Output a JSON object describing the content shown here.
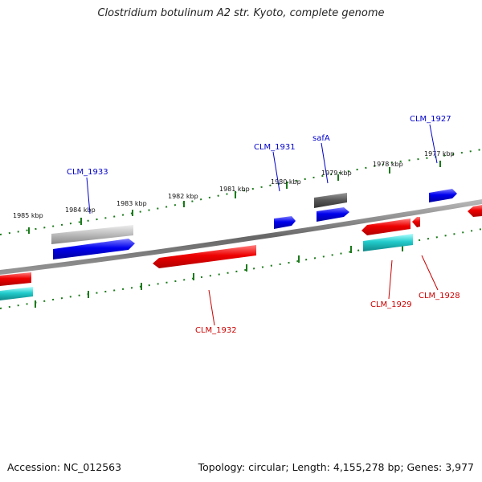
{
  "title": "Clostridium botulinum A2 str. Kyoto, complete genome",
  "footer": {
    "accession": "Accession: NC_012563",
    "summary": "Topology: circular; Length: 4,155,278 bp; Genes: 3,977"
  },
  "scale_labels": [
    "1985 kbp",
    "1984 kbp",
    "1983 kbp",
    "1982 kbp",
    "1981 kbp",
    "1980 kbp",
    "1979 kbp",
    "1978 kbp",
    "1977 kbp"
  ],
  "gene_labels_top": [
    "CLM_1933",
    "CLM_1931",
    "safA",
    "CLM_1927"
  ],
  "gene_labels_bottom": [
    "CLM_1932",
    "CLM_1929",
    "CLM_1928"
  ],
  "colors": {
    "forward_label": "#0000cc",
    "reverse_label": "#cc0000",
    "scale_dots": "#1a7a1a",
    "backbone": "#777777"
  }
}
